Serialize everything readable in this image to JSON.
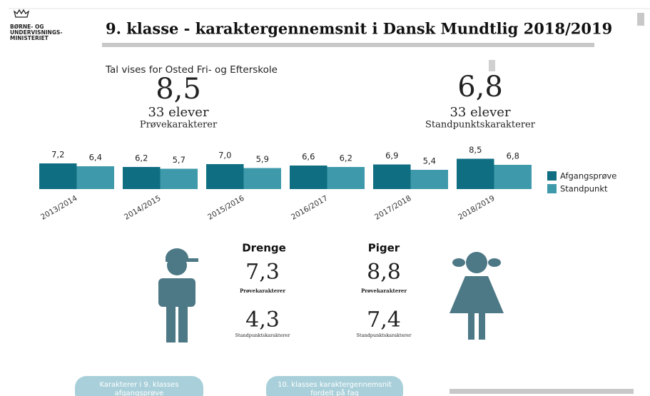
{
  "header": {
    "logo": [
      "BØRNE- OG",
      "UNDERVISNINGS-",
      "MINISTERIET"
    ],
    "title": "9. klasse - karaktergennemsnit i Dansk Mundtlig 2018/2019"
  },
  "school": "Tal vises for Osted Fri- og Efterskole",
  "summary": [
    {
      "value": "8,5",
      "students": "33 elever",
      "label": "Prøvekarakterer"
    },
    {
      "value": "6,8",
      "students": "33 elever",
      "label": "Standpunktskarakterer"
    }
  ],
  "chart_data": {
    "type": "bar",
    "categories": [
      "2013/2014",
      "2014/2015",
      "2015/2016",
      "2016/2017",
      "2017/2018",
      "2018/2019"
    ],
    "series": [
      {
        "name": "Afgangsprøve",
        "color": "#0f6e82",
        "values": [
          7.2,
          6.2,
          7.0,
          6.6,
          6.9,
          8.5
        ],
        "value_labels": [
          "7,2",
          "6,2",
          "7,0",
          "6,6",
          "6,9",
          "8,5"
        ]
      },
      {
        "name": "Standpunkt",
        "color": "#3e9aaa",
        "values": [
          6.4,
          5.7,
          5.9,
          6.2,
          5.4,
          6.8
        ],
        "value_labels": [
          "6,4",
          "5,7",
          "5,9",
          "6,2",
          "5,4",
          "6,8"
        ]
      }
    ],
    "ylim": [
      0,
      10
    ],
    "legend": "right"
  },
  "gender": [
    {
      "name": "Drenge",
      "exam": "7,3",
      "exam_label": "Prøvekarakterer",
      "standpoint": "4,3",
      "standpoint_label": "Standpunktskarakterer"
    },
    {
      "name": "Piger",
      "exam": "8,8",
      "exam_label": "Prøvekarakterer",
      "standpoint": "7,4",
      "standpoint_label": "Standpunktskarakterer"
    }
  ],
  "buttons": [
    [
      "Karakterer i 9. klasses",
      "afgangsprøve"
    ],
    [
      "10. klasses karaktergennemsnit",
      "fordelt på fag"
    ]
  ]
}
